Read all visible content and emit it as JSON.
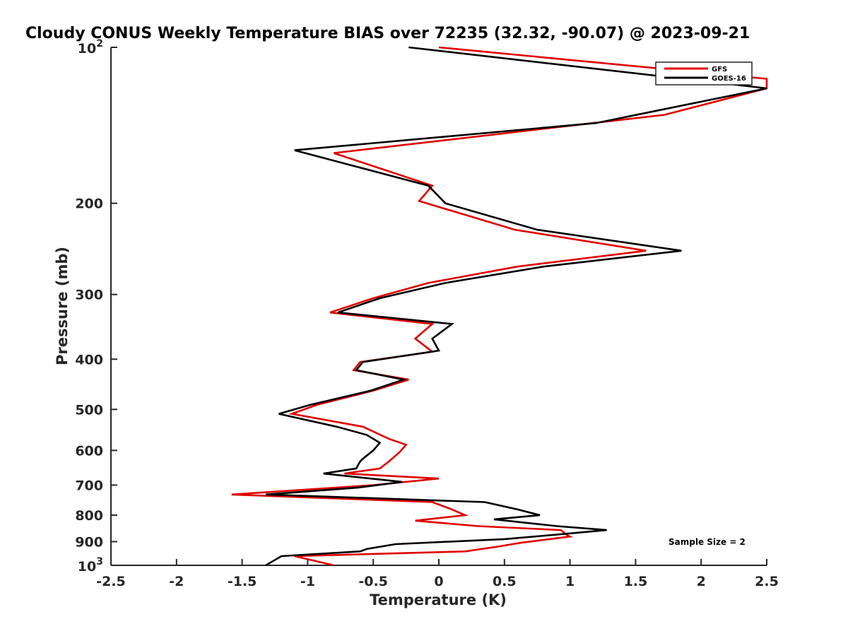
{
  "chart_data": {
    "type": "line",
    "title": "Cloudy CONUS Weekly Temperature BIAS over 72235 (32.32, -90.07) @ 2023-09-21",
    "xlabel": "Temperature (K)",
    "ylabel": "Pressure (mb)",
    "xlim": [
      -2.5,
      2.5
    ],
    "ylim": [
      100,
      1000
    ],
    "y_scale": "log",
    "y_reversed": true,
    "x_ticks": [
      -2.5,
      -2,
      -1.5,
      -1,
      -0.5,
      0,
      0.5,
      1,
      1.5,
      2,
      2.5
    ],
    "x_tick_labels": [
      "-2.5",
      "-2",
      "-1.5",
      "-1",
      "-0.5",
      "0",
      "0.5",
      "1",
      "1.5",
      "2",
      "2.5"
    ],
    "y_ticks": [
      {
        "value": 100,
        "base": "10",
        "exp": "2"
      },
      {
        "value": 200,
        "label": "200"
      },
      {
        "value": 300,
        "label": "300"
      },
      {
        "value": 400,
        "label": "400"
      },
      {
        "value": 500,
        "label": "500"
      },
      {
        "value": 600,
        "label": "600"
      },
      {
        "value": 700,
        "label": "700"
      },
      {
        "value": 800,
        "label": "800"
      },
      {
        "value": 900,
        "label": "900"
      },
      {
        "value": 1000,
        "base": "10",
        "exp": "3"
      }
    ],
    "legend": {
      "position": "top-right",
      "entries": [
        "GFS",
        "GOES-16"
      ]
    },
    "annotation": "Sample Size = 2",
    "series": [
      {
        "name": "GFS",
        "color": "#e00000",
        "points": [
          [
            0.0,
            100
          ],
          [
            2.5,
            115
          ],
          [
            2.5,
            120
          ],
          [
            1.72,
            135
          ],
          [
            -0.8,
            160
          ],
          [
            -0.05,
            185
          ],
          [
            -0.15,
            198
          ],
          [
            0.58,
            225
          ],
          [
            1.58,
            247
          ],
          [
            0.6,
            265
          ],
          [
            -0.08,
            285
          ],
          [
            -0.5,
            305
          ],
          [
            -0.83,
            325
          ],
          [
            -0.05,
            342
          ],
          [
            -0.18,
            365
          ],
          [
            -0.05,
            387
          ],
          [
            -0.6,
            405
          ],
          [
            -0.65,
            420
          ],
          [
            -0.23,
            438
          ],
          [
            -0.5,
            460
          ],
          [
            -0.93,
            490
          ],
          [
            -1.12,
            510
          ],
          [
            -0.58,
            540
          ],
          [
            -0.38,
            570
          ],
          [
            -0.25,
            585
          ],
          [
            -0.3,
            605
          ],
          [
            -0.38,
            630
          ],
          [
            -0.45,
            650
          ],
          [
            -0.72,
            665
          ],
          [
            0.0,
            680
          ],
          [
            -0.5,
            700
          ],
          [
            -1.58,
            730
          ],
          [
            -0.05,
            755
          ],
          [
            0.1,
            780
          ],
          [
            0.2,
            800
          ],
          [
            -0.18,
            820
          ],
          [
            0.3,
            840
          ],
          [
            0.93,
            855
          ],
          [
            0.98,
            875
          ],
          [
            1.0,
            880
          ],
          [
            0.62,
            905
          ],
          [
            0.45,
            920
          ],
          [
            0.2,
            940
          ],
          [
            -1.1,
            960
          ],
          [
            -0.8,
            1000
          ]
        ]
      },
      {
        "name": "GOES-16",
        "color": "#000000",
        "points": [
          [
            -0.23,
            100
          ],
          [
            2.5,
            120
          ],
          [
            1.2,
            140
          ],
          [
            -1.1,
            158
          ],
          [
            -0.08,
            185
          ],
          [
            0.05,
            200
          ],
          [
            0.75,
            225
          ],
          [
            1.85,
            247
          ],
          [
            0.8,
            265
          ],
          [
            0.05,
            285
          ],
          [
            -0.45,
            305
          ],
          [
            -0.77,
            325
          ],
          [
            0.1,
            342
          ],
          [
            -0.05,
            365
          ],
          [
            0.0,
            385
          ],
          [
            -0.58,
            405
          ],
          [
            -0.63,
            420
          ],
          [
            -0.27,
            438
          ],
          [
            -0.52,
            460
          ],
          [
            -0.98,
            490
          ],
          [
            -1.22,
            510
          ],
          [
            -0.78,
            540
          ],
          [
            -0.55,
            560
          ],
          [
            -0.45,
            580
          ],
          [
            -0.5,
            600
          ],
          [
            -0.57,
            620
          ],
          [
            -0.6,
            630
          ],
          [
            -0.63,
            650
          ],
          [
            -0.88,
            665
          ],
          [
            -0.28,
            690
          ],
          [
            -0.62,
            708
          ],
          [
            -1.32,
            730
          ],
          [
            0.35,
            755
          ],
          [
            0.6,
            780
          ],
          [
            0.77,
            800
          ],
          [
            0.42,
            815
          ],
          [
            0.9,
            840
          ],
          [
            1.28,
            855
          ],
          [
            0.95,
            870
          ],
          [
            0.5,
            890
          ],
          [
            -0.33,
            910
          ],
          [
            -0.55,
            930
          ],
          [
            -0.6,
            940
          ],
          [
            -1.2,
            960
          ],
          [
            -1.32,
            1000
          ]
        ]
      }
    ]
  }
}
